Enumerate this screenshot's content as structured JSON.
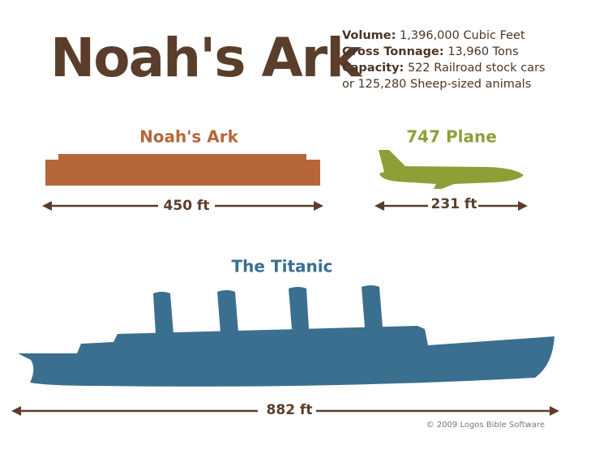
{
  "title": "Noah's Ark",
  "stats": [
    {
      "label": "Volume:",
      "value": "1,396,000 Cubic Feet"
    },
    {
      "label": "Gross Tonnage:",
      "value": "13,960 Tons"
    },
    {
      "label": "Capacity:",
      "value": "522 Railroad stock cars"
    }
  ],
  "stats_note": "or 125,280 Sheep-sized animals",
  "items": [
    {
      "name": "Noah's Ark",
      "length": "450 ft"
    },
    {
      "name": "747 Plane",
      "length": "231 ft"
    },
    {
      "name": "The Titanic",
      "length": "882 ft"
    }
  ],
  "credit": "© 2009 Logos Bible Software"
}
